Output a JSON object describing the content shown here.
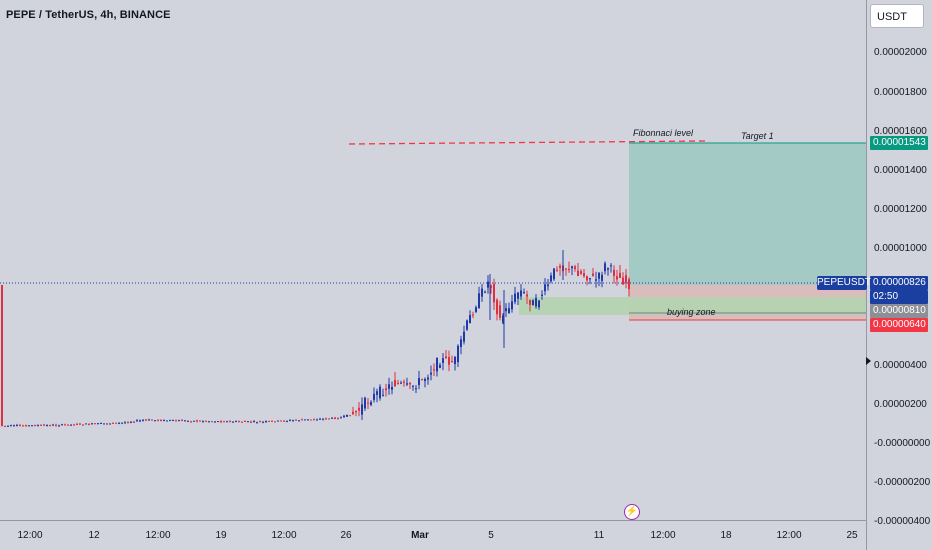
{
  "header": {
    "symbol_title": "PEPE / TetherUS, 4h, BINANCE"
  },
  "currency_button": {
    "label": "USDT"
  },
  "price_axis": {
    "ticks": [
      "0.00002000",
      "0.00001800",
      "0.00001600",
      "0.00001400",
      "0.00001200",
      "0.00001000",
      "0.00000400",
      "0.00000200",
      "-0.00000000",
      "-0.00000200",
      "-0.00000400"
    ],
    "labels": {
      "target": "0.00001543",
      "current": "0.00000826",
      "countdown": "02:50",
      "entry": "0.00000810",
      "stop": "0.00000640"
    },
    "symbol_tag": "PEPEUSDT"
  },
  "time_axis": {
    "labels": [
      "12:00",
      "12",
      "12:00",
      "19",
      "12:00",
      "26",
      "Mar",
      "5",
      "11",
      "12:00",
      "18",
      "12:00",
      "25"
    ]
  },
  "annotations": {
    "fib": "Fibonnaci level",
    "target": "Target 1",
    "buying": "buying zone"
  },
  "colors": {
    "bull": "#2038a8",
    "bear": "#e0303f",
    "target_zone": "#a3cac5",
    "stop_zone": "#dbbcbc",
    "buy_zone": "#b3d4ae",
    "target_label": "#089981",
    "current_label": "#1a3fa0",
    "stop_label": "#f23645",
    "entry_label": "#8d8f96",
    "fib_line": "#f23645"
  }
}
